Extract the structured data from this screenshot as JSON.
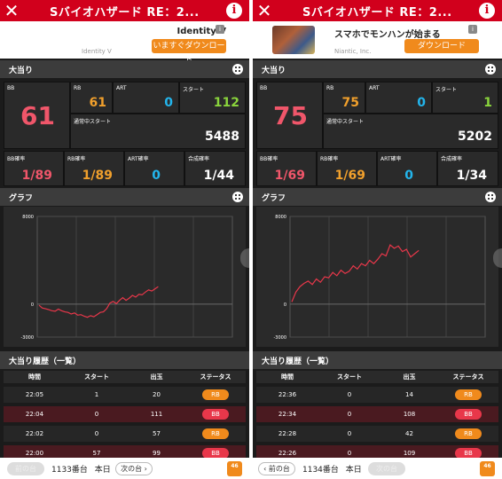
{
  "panels": [
    {
      "title": "Sバイオハザード RE：2...",
      "ad": {
        "name": "Identity V",
        "sub": "Identity V",
        "button": "いますぐダウンロード",
        "has_thumb": false,
        "info": "i"
      },
      "bonus_section": "大当り",
      "bb": {
        "label": "BB",
        "value": "61"
      },
      "rb": {
        "label": "RB",
        "value": "61"
      },
      "art": {
        "label": "ART",
        "value": "0"
      },
      "start": {
        "label": "スタート",
        "value": "112"
      },
      "normal_start": {
        "label": "通常中スタート",
        "value": "5488"
      },
      "bb_prob": {
        "label": "BB確率",
        "value": "1/89"
      },
      "rb_prob": {
        "label": "RB確率",
        "value": "1/89"
      },
      "art_prob": {
        "label": "ART確率",
        "value": "0"
      },
      "total_prob": {
        "label": "合成確率",
        "value": "1/44"
      },
      "graph_section": "グラフ",
      "y_ticks": [
        "8000",
        "0",
        "-3000"
      ],
      "history_section": "大当り履歴（一覧）",
      "history_headers": [
        "時間",
        "スタート",
        "出玉",
        "ステータス"
      ],
      "history": [
        {
          "time": "22:05",
          "start": "1",
          "payout": "20",
          "status": "RB"
        },
        {
          "time": "22:04",
          "start": "0",
          "payout": "111",
          "status": "BB"
        },
        {
          "time": "22:02",
          "start": "0",
          "payout": "57",
          "status": "RB"
        },
        {
          "time": "22:00",
          "start": "57",
          "payout": "99",
          "status": "BB"
        }
      ],
      "nav": {
        "prev": "前の台",
        "machine": "1133番台",
        "day": "本日",
        "next": "次の台"
      }
    },
    {
      "title": "Sバイオハザード RE：2...",
      "ad": {
        "name": "スマホでモンハンが始まる",
        "sub": "Niantic, Inc.",
        "button": "ダウンロード",
        "has_thumb": true,
        "info": "i"
      },
      "bonus_section": "大当り",
      "bb": {
        "label": "BB",
        "value": "75"
      },
      "rb": {
        "label": "RB",
        "value": "75"
      },
      "art": {
        "label": "ART",
        "value": "0"
      },
      "start": {
        "label": "スタート",
        "value": "1"
      },
      "normal_start": {
        "label": "通常中スタート",
        "value": "5202"
      },
      "bb_prob": {
        "label": "BB確率",
        "value": "1/69"
      },
      "rb_prob": {
        "label": "RB確率",
        "value": "1/69"
      },
      "art_prob": {
        "label": "ART確率",
        "value": "0"
      },
      "total_prob": {
        "label": "合成確率",
        "value": "1/34"
      },
      "graph_section": "グラフ",
      "y_ticks": [
        "8000",
        "0",
        "-3000"
      ],
      "history_section": "大当り履歴（一覧）",
      "history_headers": [
        "時間",
        "スタート",
        "出玉",
        "ステータス"
      ],
      "history": [
        {
          "time": "22:36",
          "start": "0",
          "payout": "14",
          "status": "RB"
        },
        {
          "time": "22:34",
          "start": "0",
          "payout": "108",
          "status": "BB"
        },
        {
          "time": "22:28",
          "start": "0",
          "payout": "42",
          "status": "RB"
        },
        {
          "time": "22:26",
          "start": "0",
          "payout": "109",
          "status": "BB"
        }
      ],
      "nav": {
        "prev": "前の台",
        "machine": "1134番台",
        "day": "本日",
        "next": "次の台"
      }
    }
  ],
  "chart_data": [
    {
      "type": "line",
      "ylim": [
        -3000,
        8000
      ],
      "yticks": [
        8000,
        0,
        -3000
      ],
      "grid": true,
      "values": [
        -100,
        -350,
        -420,
        -500,
        -600,
        -650,
        -450,
        -600,
        -700,
        -750,
        -900,
        -800,
        -1000,
        -950,
        -1100,
        -1200,
        -1050,
        -1150,
        -950,
        -750,
        -700,
        -400,
        100,
        250,
        50,
        350,
        600,
        350,
        550,
        800,
        650,
        900,
        850,
        1100,
        1300,
        1200,
        1400,
        1600
      ]
    },
    {
      "type": "line",
      "ylim": [
        -3000,
        8000
      ],
      "yticks": [
        8000,
        0,
        -3000
      ],
      "grid": true,
      "values": [
        200,
        1100,
        1600,
        1900,
        2100,
        1800,
        2300,
        2000,
        2500,
        2400,
        2900,
        2600,
        3100,
        2800,
        3000,
        3500,
        3200,
        3700,
        3500,
        4000,
        3700,
        4100,
        4600,
        4400,
        5400,
        5100,
        5300,
        4800,
        5000,
        4300,
        4600,
        4900
      ]
    }
  ]
}
